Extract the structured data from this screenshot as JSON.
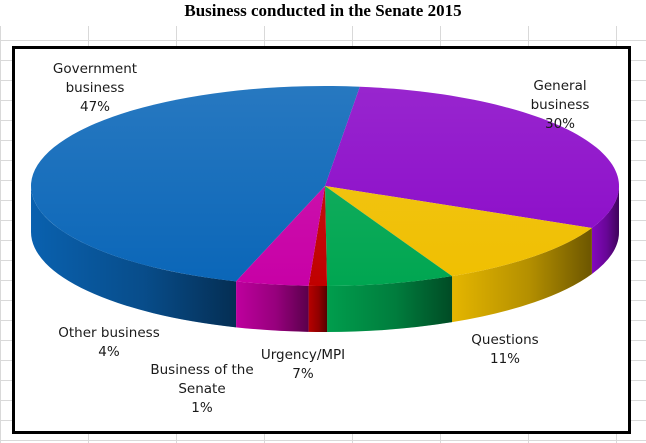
{
  "chart_data": {
    "type": "pie",
    "title": "Business conducted in the Senate 2015",
    "slices": [
      {
        "label": "Government business",
        "value": 47,
        "display": "47%",
        "color": "#0a66b8"
      },
      {
        "label": "General business",
        "value": 30,
        "display": "30%",
        "color": "#8a08c8"
      },
      {
        "label": "Questions",
        "value": 11,
        "display": "11%",
        "color": "#f0bf00"
      },
      {
        "label": "Urgency/MPI",
        "value": 7,
        "display": "7%",
        "color": "#00a651"
      },
      {
        "label": "Business of the Senate",
        "value": 1,
        "display": "1%",
        "color": "#c00000"
      },
      {
        "label": "Other business",
        "value": 4,
        "display": "4%",
        "color": "#c800a6"
      }
    ],
    "label_lines": {
      "government": [
        "Government",
        "business"
      ],
      "general": [
        "General",
        "business"
      ],
      "questions": [
        "Questions"
      ],
      "urgency": [
        "Urgency/MPI"
      ],
      "senate": [
        "Business of the",
        "Senate"
      ],
      "other": [
        "Other business"
      ]
    },
    "style": "3d-pie",
    "legend": "none"
  }
}
